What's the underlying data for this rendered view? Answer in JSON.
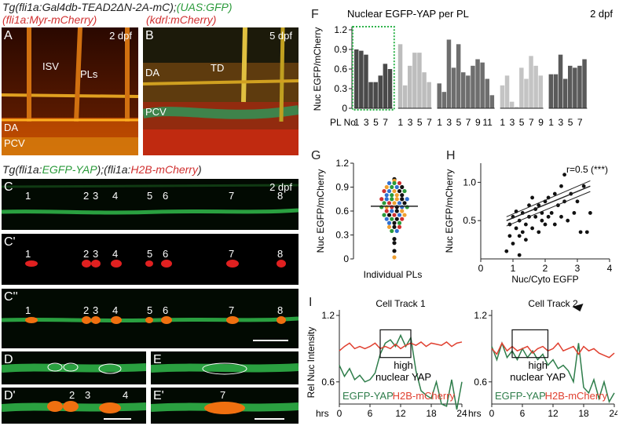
{
  "header": {
    "line1_prefix": "Tg(fli1a:Gal4db-TEAD2ΔN-2A-mC);",
    "line1_green": "(UAS:GFP)",
    "line2_red": "(fli1a:Myr-mCherry)",
    "line2b_red": "(kdrl:mCherry)",
    "mid_prefix": "Tg(fli1a:",
    "mid_green": "EGFP-YAP",
    "mid_mid": ");(fli1a:",
    "mid_red": "H2B-mCherry",
    "mid_suffix": ")"
  },
  "panels": {
    "A": {
      "label": "A",
      "stage": "2 dpf",
      "isv": "ISV",
      "pls": "PLs",
      "da": "DA",
      "pcv": "PCV"
    },
    "B": {
      "label": "B",
      "stage": "5 dpf",
      "td": "TD",
      "da": "DA",
      "pcv": "PCV"
    },
    "C": {
      "label": "C",
      "stage": "2 dpf",
      "cells": [
        "1",
        "2",
        "3",
        "4",
        "5",
        "6",
        "7",
        "8"
      ]
    },
    "C1": {
      "label": "C'",
      "cells": [
        "1",
        "2",
        "3",
        "4",
        "5",
        "6",
        "7",
        "8"
      ]
    },
    "C2": {
      "label": "C''",
      "cells": [
        "1",
        "2",
        "3",
        "4",
        "5",
        "6",
        "7",
        "8"
      ]
    },
    "D": {
      "label": "D"
    },
    "E": {
      "label": "E"
    },
    "D1": {
      "label": "D'",
      "cells": [
        "2",
        "3",
        "4"
      ]
    },
    "E1": {
      "label": "E'",
      "cells": [
        "7"
      ]
    },
    "F": {
      "label": "F"
    },
    "G": {
      "label": "G"
    },
    "H": {
      "label": "H"
    },
    "I": {
      "label": "I"
    }
  },
  "chart_data": [
    {
      "id": "F",
      "type": "bar",
      "title": "Nuclear EGFP-YAP per PL",
      "stage": "2 dpf",
      "ylabel": "Nuc EGFP/mCherry",
      "xlabel_prefix": "PL No",
      "ylim": [
        0,
        1.2
      ],
      "yticks": [
        "0",
        "0.3",
        "0.6",
        "0.9",
        "1.2"
      ],
      "groups": [
        {
          "color": "#4a4a4a",
          "ticks": [
            "1",
            "3",
            "5",
            "7"
          ],
          "values": [
            0.9,
            0.88,
            0.82,
            0.4,
            0.4,
            0.5,
            0.68,
            0.6
          ],
          "highlighted": true
        },
        {
          "color": "#bdbdbd",
          "ticks": [
            "1",
            "3",
            "5",
            "7"
          ],
          "values": [
            0.98,
            0.35,
            0.65,
            0.85,
            0.85,
            0.55,
            0.4
          ]
        },
        {
          "color": "#6e6e6e",
          "ticks": [
            "1",
            "3",
            "5",
            "7",
            "9",
            "11"
          ],
          "values": [
            0.38,
            0.25,
            1.05,
            0.62,
            0.98,
            0.55,
            0.5,
            0.65,
            0.75,
            0.7,
            0.45,
            0.2
          ]
        },
        {
          "color": "#c4c4c4",
          "ticks": [
            "1",
            "3",
            "5",
            "7",
            "9"
          ],
          "values": [
            0.35,
            0.5,
            0.1,
            0.02,
            0.62,
            0.45,
            0.8,
            0.65,
            0.5
          ]
        },
        {
          "color": "#5a5a5a",
          "ticks": [
            "1",
            "3",
            "5",
            "7"
          ],
          "values": [
            0.52,
            0.52,
            0.82,
            0.45,
            0.65,
            0.62,
            0.65,
            0.75
          ]
        }
      ]
    },
    {
      "id": "G",
      "type": "scatter",
      "ylabel": "Nuc EGFP/mCherry",
      "xlabel": "Individual PLs",
      "ylim": [
        0,
        1.2
      ],
      "yticks": [
        "0",
        "0.3",
        "0.6",
        "0.9",
        "1.2"
      ],
      "mean": 0.66,
      "points": [
        {
          "y": 1.0,
          "c": "#111111"
        },
        {
          "y": 0.98,
          "c": "#f0a030"
        },
        {
          "y": 0.95,
          "c": "#3070d0"
        },
        {
          "y": 0.95,
          "c": "#2a9a3a"
        },
        {
          "y": 0.95,
          "c": "#d03030"
        },
        {
          "y": 0.9,
          "c": "#f0a030"
        },
        {
          "y": 0.9,
          "c": "#2a9a3a"
        },
        {
          "y": 0.9,
          "c": "#3070d0"
        },
        {
          "y": 0.9,
          "c": "#111111"
        },
        {
          "y": 0.85,
          "c": "#d03030"
        },
        {
          "y": 0.85,
          "c": "#3070d0"
        },
        {
          "y": 0.85,
          "c": "#f0a030"
        },
        {
          "y": 0.85,
          "c": "#111111"
        },
        {
          "y": 0.85,
          "c": "#2a9a3a"
        },
        {
          "y": 0.8,
          "c": "#3070d0"
        },
        {
          "y": 0.8,
          "c": "#2a9a3a"
        },
        {
          "y": 0.8,
          "c": "#f0a030"
        },
        {
          "y": 0.8,
          "c": "#111111"
        },
        {
          "y": 0.75,
          "c": "#d03030"
        },
        {
          "y": 0.75,
          "c": "#3070d0"
        },
        {
          "y": 0.75,
          "c": "#2a9a3a"
        },
        {
          "y": 0.75,
          "c": "#f0a030"
        },
        {
          "y": 0.75,
          "c": "#111111"
        },
        {
          "y": 0.75,
          "c": "#3070d0"
        },
        {
          "y": 0.7,
          "c": "#2a9a3a"
        },
        {
          "y": 0.7,
          "c": "#d03030"
        },
        {
          "y": 0.7,
          "c": "#f0a030"
        },
        {
          "y": 0.7,
          "c": "#3070d0"
        },
        {
          "y": 0.7,
          "c": "#111111"
        },
        {
          "y": 0.65,
          "c": "#2a9a3a"
        },
        {
          "y": 0.65,
          "c": "#f0a030"
        },
        {
          "y": 0.65,
          "c": "#d03030"
        },
        {
          "y": 0.65,
          "c": "#111111"
        },
        {
          "y": 0.65,
          "c": "#3070d0"
        },
        {
          "y": 0.65,
          "c": "#2a9a3a"
        },
        {
          "y": 0.6,
          "c": "#d03030"
        },
        {
          "y": 0.6,
          "c": "#3070d0"
        },
        {
          "y": 0.6,
          "c": "#111111"
        },
        {
          "y": 0.6,
          "c": "#f0a030"
        },
        {
          "y": 0.55,
          "c": "#2a9a3a"
        },
        {
          "y": 0.55,
          "c": "#111111"
        },
        {
          "y": 0.55,
          "c": "#d03030"
        },
        {
          "y": 0.55,
          "c": "#3070d0"
        },
        {
          "y": 0.55,
          "c": "#f0a030"
        },
        {
          "y": 0.5,
          "c": "#3070d0"
        },
        {
          "y": 0.5,
          "c": "#2a9a3a"
        },
        {
          "y": 0.5,
          "c": "#111111"
        },
        {
          "y": 0.5,
          "c": "#d03030"
        },
        {
          "y": 0.45,
          "c": "#3070d0"
        },
        {
          "y": 0.45,
          "c": "#111111"
        },
        {
          "y": 0.45,
          "c": "#2a9a3a"
        },
        {
          "y": 0.4,
          "c": "#f0a030"
        },
        {
          "y": 0.4,
          "c": "#111111"
        },
        {
          "y": 0.4,
          "c": "#d03030"
        },
        {
          "y": 0.35,
          "c": "#2a9a3a"
        },
        {
          "y": 0.35,
          "c": "#3070d0"
        },
        {
          "y": 0.25,
          "c": "#111111"
        },
        {
          "y": 0.2,
          "c": "#111111"
        },
        {
          "y": 0.1,
          "c": "#111111"
        },
        {
          "y": 0.02,
          "c": "#f0a030"
        }
      ]
    },
    {
      "id": "H",
      "type": "scatter",
      "ylabel": "Nuc EGFP/mCherry",
      "xlabel": "Nuc/Cyto EGFP",
      "annotation": "r=0.5 (***)",
      "xlim": [
        0,
        4
      ],
      "ylim": [
        0,
        1.25
      ],
      "xticks": [
        "0",
        "1",
        "2",
        "3",
        "4"
      ],
      "yticks": [
        "0.5",
        "1.0"
      ],
      "fit": {
        "x": [
          0.8,
          3.4
        ],
        "y": [
          0.5,
          0.95
        ]
      },
      "ci_upper": {
        "x": [
          0.8,
          3.4
        ],
        "y": [
          0.55,
          1.02
        ]
      },
      "ci_lower": {
        "x": [
          0.8,
          3.4
        ],
        "y": [
          0.43,
          0.88
        ]
      },
      "points": [
        [
          0.8,
          0.1
        ],
        [
          0.9,
          0.3
        ],
        [
          0.9,
          0.45
        ],
        [
          1.0,
          0.2
        ],
        [
          1.0,
          0.55
        ],
        [
          1.1,
          0.4
        ],
        [
          1.1,
          0.62
        ],
        [
          1.2,
          0.5
        ],
        [
          1.2,
          0.3
        ],
        [
          1.2,
          0.05
        ],
        [
          1.3,
          0.35
        ],
        [
          1.3,
          0.6
        ],
        [
          1.4,
          0.45
        ],
        [
          1.4,
          0.25
        ],
        [
          1.5,
          0.55
        ],
        [
          1.5,
          0.7
        ],
        [
          1.6,
          0.4
        ],
        [
          1.6,
          0.8
        ],
        [
          1.7,
          0.55
        ],
        [
          1.7,
          0.65
        ],
        [
          1.8,
          0.35
        ],
        [
          1.8,
          0.7
        ],
        [
          1.9,
          0.5
        ],
        [
          1.9,
          0.6
        ],
        [
          2.0,
          0.75
        ],
        [
          2.0,
          0.45
        ],
        [
          2.1,
          0.8
        ],
        [
          2.1,
          0.55
        ],
        [
          2.2,
          0.6
        ],
        [
          2.3,
          0.85
        ],
        [
          2.3,
          0.45
        ],
        [
          2.4,
          0.7
        ],
        [
          2.5,
          0.95
        ],
        [
          2.5,
          0.55
        ],
        [
          2.6,
          0.75
        ],
        [
          2.7,
          0.5
        ],
        [
          2.8,
          0.85
        ],
        [
          2.9,
          0.6
        ],
        [
          3.0,
          0.75
        ],
        [
          3.1,
          0.35
        ],
        [
          3.2,
          0.95
        ],
        [
          3.3,
          0.35
        ],
        [
          3.4,
          0.6
        ],
        [
          2.6,
          1.1
        ]
      ]
    },
    {
      "id": "I1",
      "type": "line",
      "title": "Cell Track 1",
      "ylabel": "Rel Nuc Intensity",
      "xlabel": "hrs",
      "xlim": [
        0,
        24
      ],
      "ylim": [
        0.4,
        1.25
      ],
      "xticks": [
        "0",
        "6",
        "12",
        "18",
        "24"
      ],
      "yticks": [
        "0.6",
        "1.2"
      ],
      "box_label": "high\nnuclear YAP",
      "box_x": [
        8,
        14
      ],
      "series": [
        {
          "name": "EGFP-YAP",
          "color": "#2e7d4a",
          "x": [
            0,
            1,
            2,
            3,
            4,
            5,
            6,
            7,
            8,
            9,
            10,
            11,
            12,
            13,
            14,
            15,
            16,
            17,
            18,
            19,
            20,
            21,
            22,
            23,
            24
          ],
          "y": [
            0.75,
            0.65,
            0.72,
            0.62,
            0.66,
            0.6,
            0.62,
            0.68,
            0.85,
            0.95,
            0.98,
            0.92,
            1.02,
            0.92,
            1.0,
            0.7,
            0.52,
            0.48,
            0.45,
            0.6,
            0.4,
            0.38,
            0.62,
            0.35,
            0.6
          ]
        },
        {
          "name": "H2B-mCherry",
          "color": "#e04030",
          "x": [
            0,
            1,
            2,
            3,
            4,
            5,
            6,
            7,
            8,
            9,
            10,
            11,
            12,
            13,
            14,
            15,
            16,
            17,
            18,
            19,
            20,
            21,
            22,
            23,
            24
          ],
          "y": [
            0.88,
            0.92,
            0.95,
            0.9,
            0.92,
            0.9,
            0.92,
            0.95,
            0.9,
            0.92,
            0.9,
            0.94,
            0.9,
            0.93,
            0.95,
            0.93,
            0.96,
            0.92,
            0.95,
            0.94,
            0.93,
            0.96,
            0.92,
            0.95,
            0.96
          ]
        }
      ]
    },
    {
      "id": "I2",
      "type": "line",
      "title": "Cell Track 2",
      "xlabel": "hrs",
      "xlim": [
        0,
        24
      ],
      "ylim": [
        0.4,
        1.25
      ],
      "xticks": [
        "0",
        "6",
        "12",
        "18",
        "24"
      ],
      "yticks": [
        "0.6",
        "1.2"
      ],
      "box_label": "high\nnuclear YAP",
      "box_x": [
        4,
        11
      ],
      "series": [
        {
          "name": "EGFP-YAP",
          "color": "#2e7d4a",
          "x": [
            0,
            1,
            2,
            3,
            4,
            5,
            6,
            7,
            8,
            9,
            10,
            11,
            12,
            13,
            14,
            15,
            16,
            17,
            18,
            19,
            20,
            21,
            22,
            23,
            24
          ],
          "y": [
            0.92,
            0.8,
            0.95,
            0.82,
            0.88,
            0.8,
            0.9,
            0.82,
            0.88,
            0.8,
            0.85,
            0.75,
            0.8,
            0.72,
            0.75,
            0.7,
            0.6,
            0.95,
            0.55,
            0.5,
            0.62,
            0.45,
            0.6,
            0.42,
            0.5
          ]
        },
        {
          "name": "H2B-mCherry",
          "color": "#e04030",
          "x": [
            0,
            1,
            2,
            3,
            4,
            5,
            6,
            7,
            8,
            9,
            10,
            11,
            12,
            13,
            14,
            15,
            16,
            17,
            18,
            19,
            20,
            21,
            22,
            23,
            24
          ],
          "y": [
            0.9,
            0.85,
            0.95,
            0.88,
            0.92,
            0.88,
            0.9,
            0.92,
            0.86,
            0.9,
            0.92,
            0.88,
            0.9,
            0.95,
            0.88,
            0.9,
            0.92,
            0.85,
            0.92,
            0.88,
            0.9,
            0.86,
            0.84,
            0.82,
            0.86
          ]
        }
      ]
    }
  ]
}
